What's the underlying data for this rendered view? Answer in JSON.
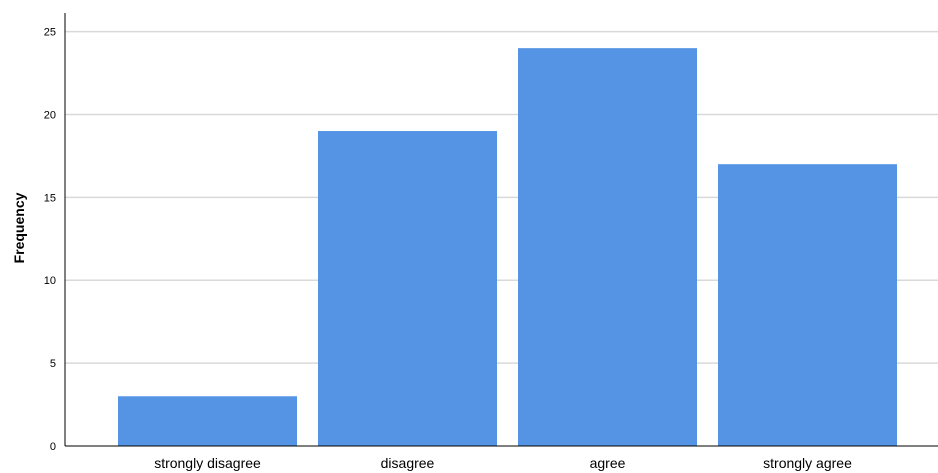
{
  "chart_data": {
    "type": "bar",
    "categories": [
      "strongly disagree",
      "disagree",
      "agree",
      "strongly agree"
    ],
    "values": [
      3,
      19,
      24,
      17
    ],
    "title": "",
    "xlabel": "",
    "ylabel": "Frequency",
    "ylim": [
      0,
      26
    ],
    "yticks": [
      0,
      5,
      10,
      15,
      20,
      25
    ],
    "grid": true,
    "legend": "none",
    "colors": {
      "bar": "#5594e4",
      "grid": "#d9d9d9",
      "axis": "#000000"
    }
  }
}
